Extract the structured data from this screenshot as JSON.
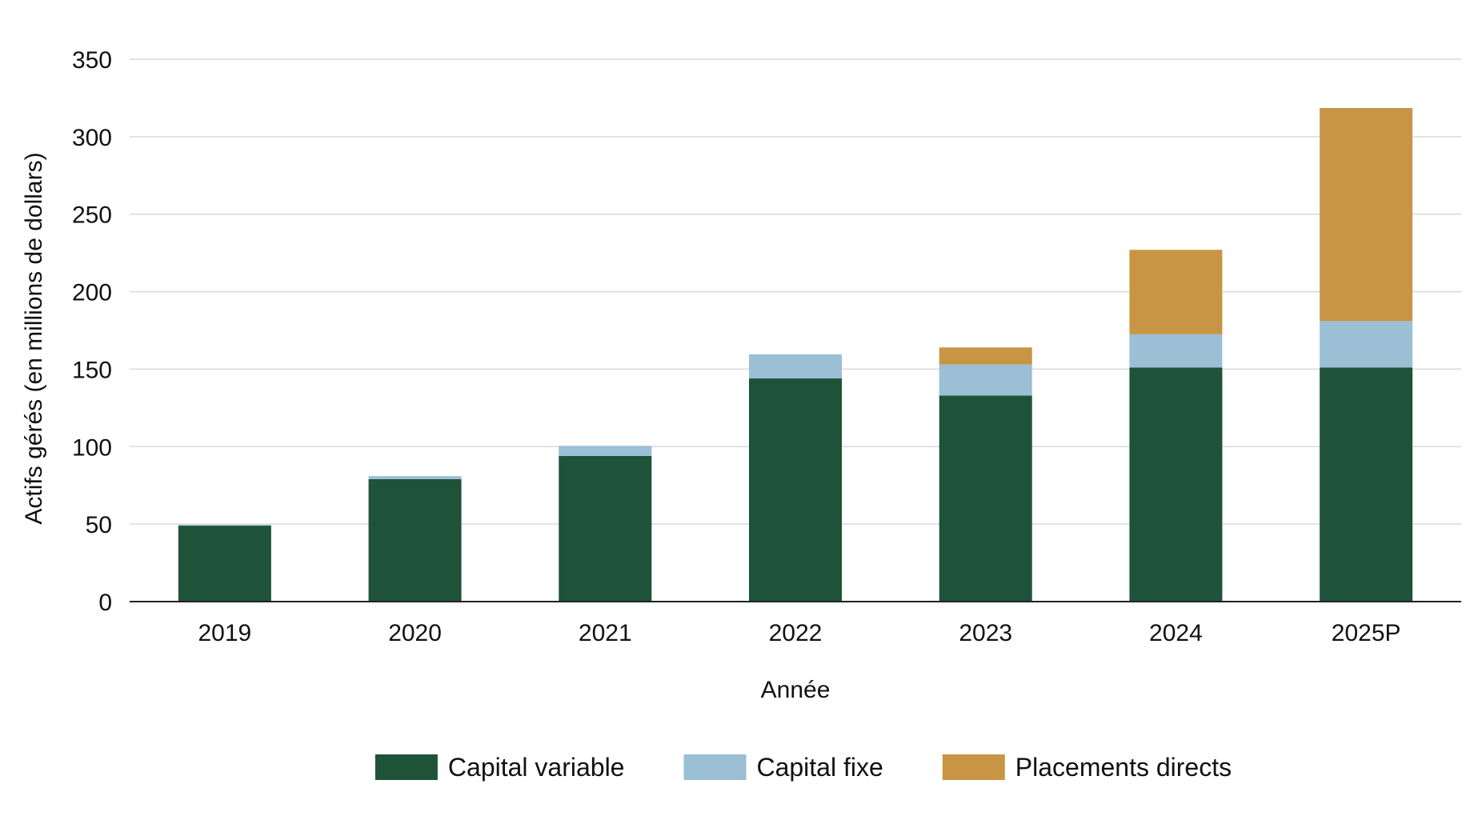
{
  "chart_data": {
    "type": "bar",
    "stacked": true,
    "categories": [
      "2019",
      "2020",
      "2021",
      "2022",
      "2023",
      "2024",
      "2025P"
    ],
    "series": [
      {
        "name": "Capital variable",
        "color": "#1e5339",
        "values": [
          49,
          79,
          94,
          144,
          133,
          151,
          151
        ]
      },
      {
        "name": "Capital fixe",
        "color": "#9bbfd4",
        "values": [
          0.5,
          2,
          6.5,
          15.5,
          20,
          21.5,
          30
        ]
      },
      {
        "name": "Placements directs",
        "color": "#c89545",
        "values": [
          0,
          0,
          0,
          0,
          11,
          54.5,
          137.5
        ]
      }
    ],
    "xlabel": "Année",
    "ylabel": "Actifs gérés (en millions de dollars)",
    "ylim": [
      0,
      350
    ],
    "yticks": [
      0,
      50,
      100,
      150,
      200,
      250,
      300,
      350
    ],
    "grid": true,
    "legend": "bottom"
  }
}
